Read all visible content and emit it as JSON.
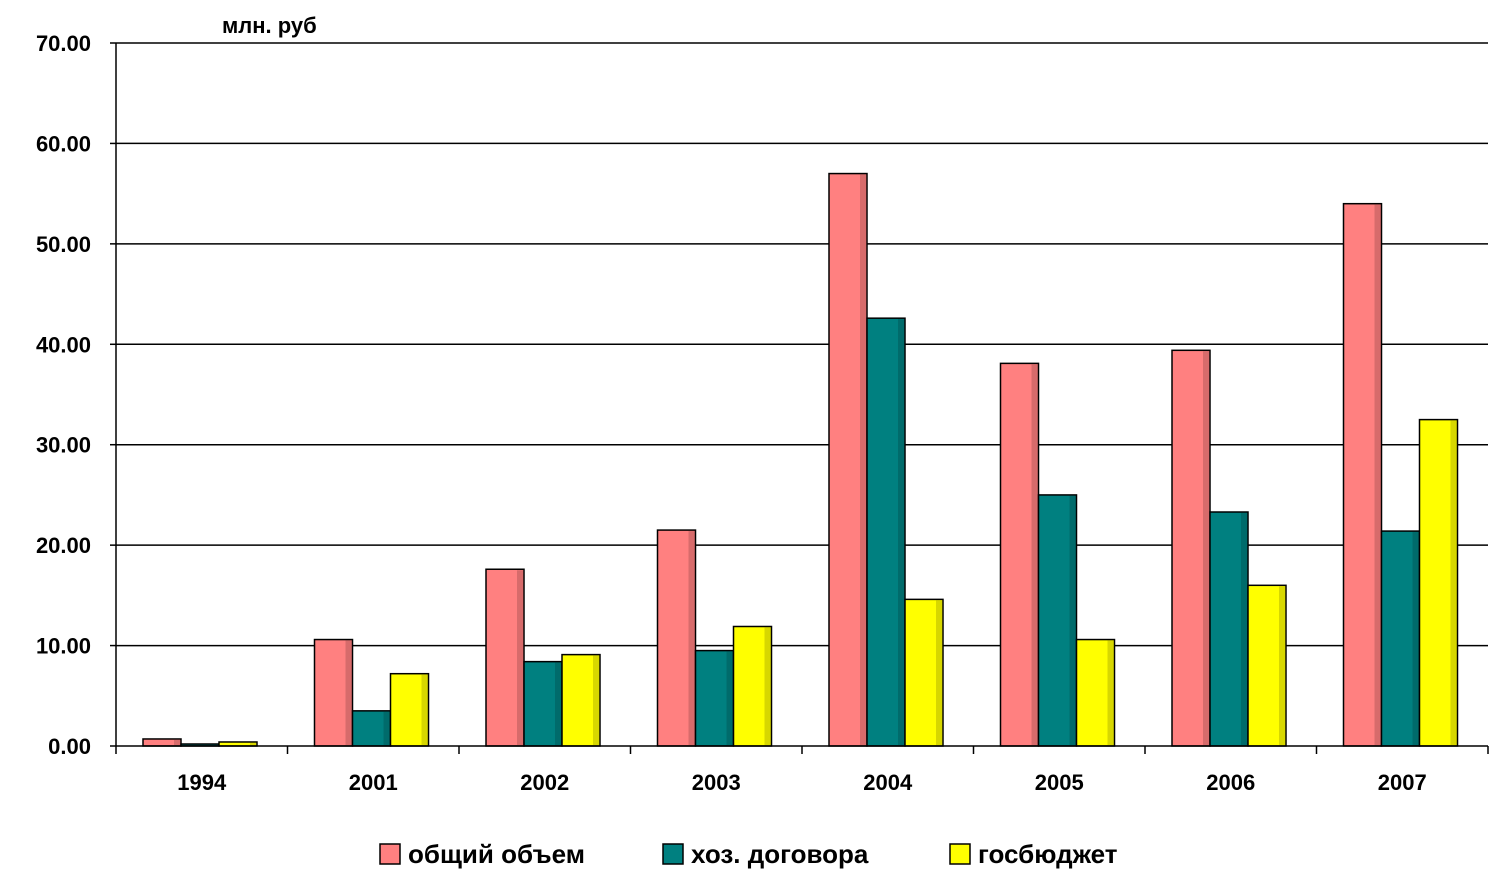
{
  "chart_data": {
    "type": "bar",
    "ylabel": "млн. руб",
    "ylim": [
      0,
      70
    ],
    "yticks": [
      "0.00",
      "10.00",
      "20.00",
      "30.00",
      "40.00",
      "50.00",
      "60.00",
      "70.00"
    ],
    "grid": true,
    "legend_position": "bottom",
    "categories": [
      "1994",
      "2001",
      "2002",
      "2003",
      "2004",
      "2005",
      "2006",
      "2007"
    ],
    "series": [
      {
        "name": "общий объем",
        "color": "#ff8080",
        "values": [
          0.7,
          10.6,
          17.6,
          21.5,
          57.0,
          38.1,
          39.4,
          54.0
        ]
      },
      {
        "name": "хоз. договора",
        "color": "#008080",
        "values": [
          0.2,
          3.5,
          8.4,
          9.5,
          42.6,
          25.0,
          23.3,
          21.4
        ]
      },
      {
        "name": "госбюджет",
        "color": "#ffff00",
        "values": [
          0.4,
          7.2,
          9.1,
          11.9,
          14.6,
          10.6,
          16.0,
          32.5
        ]
      }
    ]
  }
}
